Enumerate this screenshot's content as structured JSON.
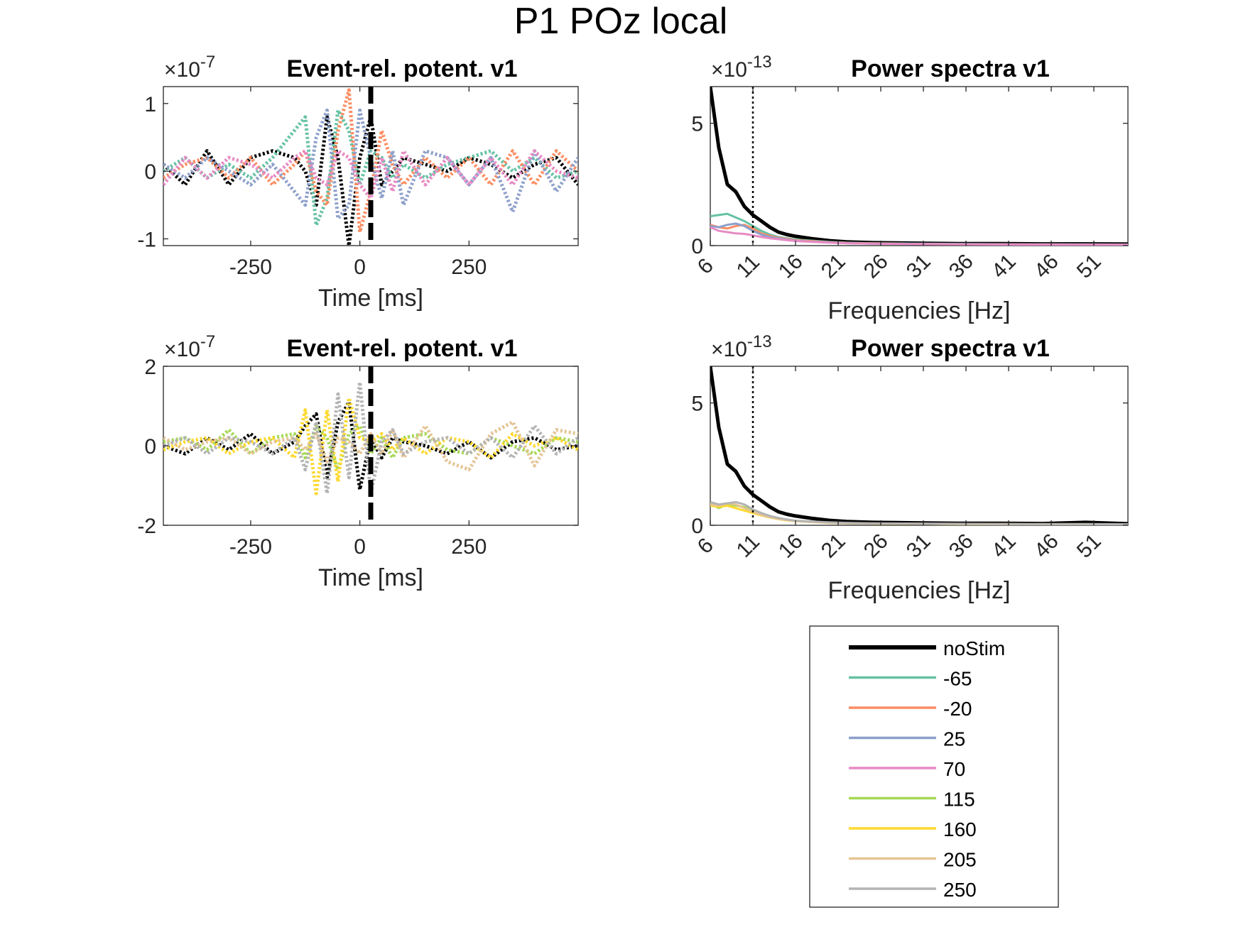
{
  "figure": {
    "title": "P1 POz local"
  },
  "colors": {
    "noStim": "#000000",
    "-65": "#66c2a5",
    "-20": "#fc8d62",
    "25": "#8da0cb",
    "70": "#e78ac3",
    "115": "#a6d854",
    "160": "#ffd92f",
    "205": "#e5c494",
    "250": "#b3b3b3"
  },
  "legend": {
    "placement": "bottom-right",
    "entries": [
      "noStim",
      "-65",
      "-20",
      "25",
      "70",
      "115",
      "160",
      "205",
      "250"
    ]
  },
  "chart_data": [
    {
      "id": "erp_top",
      "type": "line",
      "title": "Event-rel. potent. v1",
      "xlabel": "Time [ms]",
      "ylabel": "",
      "exponent_label": "×10",
      "exponent": "-7",
      "xlim": [
        -450,
        500
      ],
      "ylim": [
        -1.1,
        1.25
      ],
      "xticks": [
        -250,
        0,
        250
      ],
      "xtick_labels": [
        "-250",
        "0",
        "250"
      ],
      "yticks": [
        -1,
        0,
        1
      ],
      "ytick_labels": [
        "-1",
        "0",
        "1"
      ],
      "grid": false,
      "line_style": "dotted",
      "marker_line": {
        "x": 25,
        "style": "dashed"
      },
      "x": [
        -450,
        -400,
        -350,
        -300,
        -250,
        -200,
        -150,
        -125,
        -100,
        -75,
        -50,
        -25,
        0,
        25,
        50,
        75,
        100,
        150,
        200,
        250,
        300,
        350,
        400,
        450,
        500
      ],
      "series": [
        {
          "name": "noStim",
          "values": [
            0.1,
            -0.2,
            0.3,
            -0.2,
            0.2,
            0.3,
            0.2,
            0.0,
            -0.5,
            0.8,
            0.2,
            -1.1,
            0.2,
            0.8,
            -0.2,
            0.0,
            0.2,
            0.1,
            0.0,
            0.2,
            0.1,
            -0.1,
            0.1,
            0.2,
            -0.2
          ]
        },
        {
          "name": "-65",
          "values": [
            0.0,
            0.2,
            -0.1,
            0.1,
            -0.1,
            0.2,
            0.6,
            0.8,
            -0.8,
            -0.4,
            0.9,
            0.6,
            -0.2,
            0.3,
            0.2,
            -0.1,
            0.1,
            -0.1,
            0.1,
            0.2,
            0.3,
            0.0,
            0.2,
            -0.1,
            0.0
          ]
        },
        {
          "name": "-20",
          "values": [
            -0.1,
            0.1,
            0.2,
            -0.1,
            0.2,
            -0.2,
            0.1,
            0.3,
            -0.3,
            -0.5,
            0.6,
            1.2,
            -0.9,
            -0.3,
            0.6,
            0.1,
            -0.2,
            0.2,
            -0.1,
            0.2,
            -0.2,
            0.3,
            -0.2,
            0.3,
            0.0
          ]
        },
        {
          "name": "25",
          "values": [
            0.1,
            -0.1,
            0.2,
            0.0,
            -0.2,
            0.1,
            -0.3,
            -0.5,
            0.5,
            0.9,
            -0.7,
            -0.5,
            0.9,
            0.2,
            -0.4,
            0.3,
            -0.5,
            0.3,
            0.2,
            -0.2,
            0.2,
            -0.6,
            0.3,
            -0.3,
            0.2
          ]
        },
        {
          "name": "70",
          "values": [
            -0.2,
            0.2,
            -0.1,
            0.2,
            0.1,
            -0.1,
            0.2,
            0.3,
            -0.1,
            -0.2,
            0.3,
            0.2,
            -0.2,
            -0.4,
            0.2,
            -0.3,
            0.3,
            -0.2,
            0.2,
            -0.2,
            0.2,
            -0.2,
            0.3,
            0.0,
            -0.1
          ]
        }
      ]
    },
    {
      "id": "power_top",
      "type": "line",
      "title": "Power spectra v1",
      "xlabel": "Frequencies [Hz]",
      "ylabel": "",
      "exponent_label": "×10",
      "exponent": "-13",
      "xlim": [
        6,
        55
      ],
      "ylim": [
        0,
        6.5
      ],
      "xticks": [
        6,
        11,
        16,
        21,
        26,
        31,
        36,
        41,
        46,
        51
      ],
      "xtick_labels": [
        "6",
        "11",
        "16",
        "21",
        "26",
        "31",
        "36",
        "41",
        "46",
        "51"
      ],
      "yticks": [
        0,
        5
      ],
      "ytick_labels": [
        "0",
        "5"
      ],
      "grid": false,
      "marker_line": {
        "x": 11,
        "style": "dotted"
      },
      "x": [
        6,
        7,
        8,
        9,
        10,
        11,
        12,
        13,
        14,
        15,
        16,
        18,
        20,
        22,
        25,
        30,
        35,
        40,
        45,
        50,
        55
      ],
      "series": [
        {
          "name": "noStim",
          "values": [
            6.5,
            4.0,
            2.5,
            2.2,
            1.6,
            1.25,
            1.0,
            0.75,
            0.55,
            0.45,
            0.38,
            0.28,
            0.2,
            0.15,
            0.12,
            0.1,
            0.08,
            0.08,
            0.07,
            0.07,
            0.06
          ]
        },
        {
          "name": "-65",
          "values": [
            1.2,
            1.25,
            1.3,
            1.15,
            1.0,
            0.8,
            0.6,
            0.45,
            0.35,
            0.3,
            0.25,
            0.2,
            0.15,
            0.12,
            0.1,
            0.08,
            0.07,
            0.06,
            0.05,
            0.05,
            0.04
          ]
        },
        {
          "name": "-20",
          "values": [
            0.85,
            0.75,
            0.7,
            0.8,
            0.85,
            0.7,
            0.5,
            0.4,
            0.32,
            0.28,
            0.22,
            0.18,
            0.14,
            0.11,
            0.09,
            0.07,
            0.06,
            0.05,
            0.05,
            0.04,
            0.04
          ]
        },
        {
          "name": "25",
          "values": [
            0.8,
            0.75,
            0.85,
            0.9,
            0.8,
            0.6,
            0.45,
            0.35,
            0.3,
            0.25,
            0.2,
            0.16,
            0.13,
            0.1,
            0.08,
            0.07,
            0.06,
            0.05,
            0.05,
            0.04,
            0.04
          ]
        },
        {
          "name": "70",
          "values": [
            0.75,
            0.6,
            0.55,
            0.5,
            0.48,
            0.42,
            0.35,
            0.3,
            0.26,
            0.22,
            0.19,
            0.15,
            0.12,
            0.1,
            0.08,
            0.06,
            0.05,
            0.05,
            0.04,
            0.04,
            0.03
          ]
        }
      ]
    },
    {
      "id": "erp_bottom",
      "type": "line",
      "title": "Event-rel. potent. v1",
      "xlabel": "Time [ms]",
      "ylabel": "",
      "exponent_label": "×10",
      "exponent": "-7",
      "xlim": [
        -450,
        500
      ],
      "ylim": [
        -2,
        2
      ],
      "xticks": [
        -250,
        0,
        250
      ],
      "xtick_labels": [
        "-250",
        "0",
        "250"
      ],
      "yticks": [
        -2,
        0,
        2
      ],
      "ytick_labels": [
        "-2",
        "0",
        "2"
      ],
      "grid": false,
      "line_style": "dotted",
      "marker_line": {
        "x": 25,
        "style": "dashed"
      },
      "x": [
        -450,
        -400,
        -350,
        -300,
        -250,
        -200,
        -150,
        -125,
        -100,
        -75,
        -50,
        -25,
        0,
        25,
        50,
        75,
        100,
        150,
        200,
        250,
        300,
        350,
        400,
        450,
        500
      ],
      "series": [
        {
          "name": "noStim",
          "values": [
            0.0,
            -0.2,
            0.2,
            -0.1,
            0.3,
            -0.2,
            0.1,
            0.5,
            0.8,
            -0.8,
            0.6,
            1.1,
            -1.1,
            0.2,
            -0.3,
            0.2,
            0.1,
            0.0,
            -0.2,
            0.1,
            -0.3,
            0.1,
            0.2,
            -0.1,
            0.0
          ]
        },
        {
          "name": "115",
          "values": [
            0.1,
            0.2,
            -0.1,
            0.4,
            -0.2,
            0.2,
            0.3,
            -0.3,
            0.5,
            0.2,
            -0.6,
            0.3,
            0.5,
            -0.2,
            0.2,
            -0.3,
            0.2,
            0.3,
            -0.1,
            -0.2,
            0.2,
            0.0,
            -0.2,
            0.2,
            0.1
          ]
        },
        {
          "name": "160",
          "values": [
            -0.1,
            0.1,
            0.2,
            -0.2,
            0.1,
            0.2,
            -0.3,
            0.9,
            -1.2,
            0.9,
            -0.9,
            1.2,
            0.2,
            0.1,
            0.3,
            -0.1,
            0.2,
            -0.2,
            0.2,
            0.1,
            -0.3,
            0.3,
            0.0,
            0.2,
            -0.1
          ]
        },
        {
          "name": "205",
          "values": [
            0.2,
            -0.1,
            0.1,
            0.2,
            -0.2,
            0.1,
            0.2,
            -0.1,
            0.3,
            -0.4,
            0.2,
            0.1,
            -0.2,
            0.3,
            -0.2,
            0.4,
            -0.3,
            0.5,
            -0.4,
            -0.6,
            0.3,
            0.6,
            -0.5,
            0.4,
            0.3
          ]
        },
        {
          "name": "250",
          "values": [
            0.0,
            0.2,
            -0.2,
            0.2,
            0.1,
            -0.2,
            0.2,
            -0.6,
            0.6,
            -1.2,
            1.3,
            -0.8,
            1.6,
            -1.2,
            0.1,
            0.4,
            -0.2,
            0.1,
            0.2,
            -0.2,
            0.2,
            -0.3,
            0.5,
            -0.2,
            0.2
          ]
        }
      ]
    },
    {
      "id": "power_bottom",
      "type": "line",
      "title": "Power spectra v1",
      "xlabel": "Frequencies [Hz]",
      "ylabel": "",
      "exponent_label": "×10",
      "exponent": "-13",
      "xlim": [
        6,
        55
      ],
      "ylim": [
        0,
        6.5
      ],
      "xticks": [
        6,
        11,
        16,
        21,
        26,
        31,
        36,
        41,
        46,
        51
      ],
      "xtick_labels": [
        "6",
        "11",
        "16",
        "21",
        "26",
        "31",
        "36",
        "41",
        "46",
        "51"
      ],
      "yticks": [
        0,
        5
      ],
      "ytick_labels": [
        "0",
        "5"
      ],
      "grid": false,
      "marker_line": {
        "x": 11,
        "style": "dotted"
      },
      "x": [
        6,
        7,
        8,
        9,
        10,
        11,
        12,
        13,
        14,
        15,
        16,
        18,
        20,
        22,
        25,
        30,
        35,
        40,
        45,
        50,
        55
      ],
      "series": [
        {
          "name": "noStim",
          "values": [
            6.5,
            4.0,
            2.5,
            2.2,
            1.6,
            1.25,
            1.0,
            0.75,
            0.55,
            0.45,
            0.38,
            0.28,
            0.2,
            0.15,
            0.12,
            0.1,
            0.08,
            0.08,
            0.07,
            0.12,
            0.06
          ]
        },
        {
          "name": "115",
          "values": [
            0.9,
            0.7,
            0.85,
            0.8,
            0.75,
            0.6,
            0.45,
            0.35,
            0.28,
            0.22,
            0.18,
            0.14,
            0.11,
            0.09,
            0.07,
            0.06,
            0.05,
            0.05,
            0.04,
            0.04,
            0.03
          ]
        },
        {
          "name": "160",
          "values": [
            0.8,
            0.75,
            0.8,
            0.7,
            0.6,
            0.5,
            0.4,
            0.32,
            0.25,
            0.2,
            0.17,
            0.13,
            0.1,
            0.08,
            0.07,
            0.06,
            0.05,
            0.04,
            0.04,
            0.04,
            0.03
          ]
        },
        {
          "name": "205",
          "values": [
            0.85,
            0.8,
            0.9,
            0.85,
            0.7,
            0.55,
            0.42,
            0.33,
            0.26,
            0.21,
            0.17,
            0.13,
            0.1,
            0.08,
            0.07,
            0.06,
            0.05,
            0.05,
            0.04,
            0.04,
            0.03
          ]
        },
        {
          "name": "250",
          "values": [
            0.95,
            0.85,
            0.9,
            0.95,
            0.85,
            0.65,
            0.5,
            0.38,
            0.3,
            0.24,
            0.19,
            0.15,
            0.12,
            0.1,
            0.08,
            0.07,
            0.06,
            0.05,
            0.05,
            0.05,
            0.04
          ]
        }
      ]
    }
  ]
}
